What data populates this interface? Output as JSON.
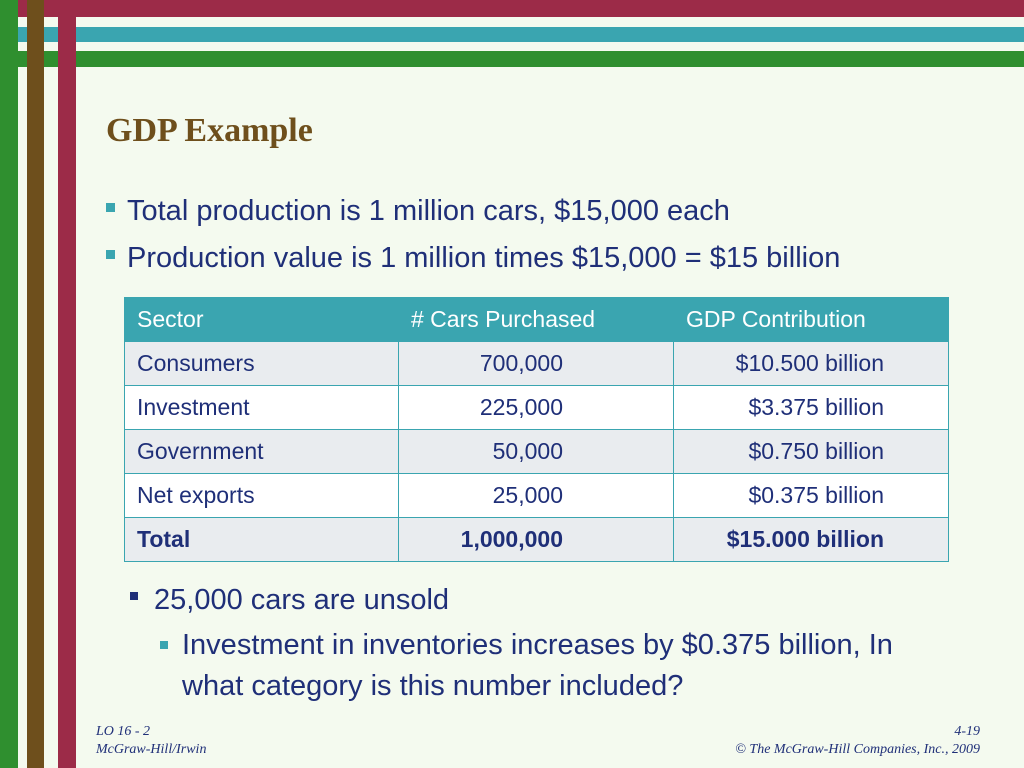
{
  "slide": {
    "title": "GDP Example",
    "bullets": [
      "Total production is 1 million cars, $15,000 each",
      "Production value is 1 million times $15,000 = $15 billion"
    ]
  },
  "table": {
    "headers": [
      "Sector",
      "# Cars Purchased",
      "GDP Contribution"
    ],
    "rows": [
      {
        "sector": "Consumers",
        "cars": "700,000",
        "gdp": "$10.500 billion"
      },
      {
        "sector": "Investment",
        "cars": "225,000",
        "gdp": "$3.375 billion"
      },
      {
        "sector": "Government",
        "cars": "50,000",
        "gdp": "$0.750 billion"
      },
      {
        "sector": "Net exports",
        "cars": "25,000",
        "gdp": "$0.375 billion"
      }
    ],
    "total": {
      "sector": "Total",
      "cars": "1,000,000",
      "gdp": "$15.000 billion"
    }
  },
  "notes": {
    "level1": "25,000 cars are unsold",
    "level2": "Investment in inventories increases by $0.375 billion, In what category is this number included?"
  },
  "footer": {
    "lo": "LO 16 - 2",
    "publisher": "McGraw-Hill/Irwin",
    "page": "4-19",
    "copyright": "© The McGraw-Hill Companies, Inc., 2009"
  },
  "colors": {
    "maroon": "#9c2b48",
    "teal": "#3aa5b0",
    "green": "#2f8f2f",
    "brown": "#6e4f1c",
    "text": "#1f2f78"
  }
}
